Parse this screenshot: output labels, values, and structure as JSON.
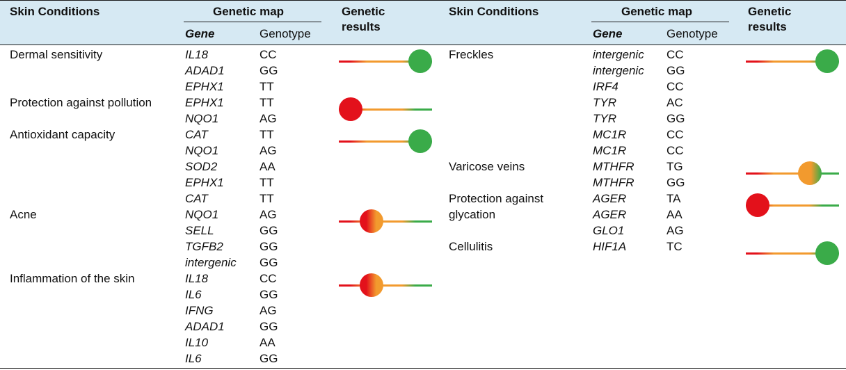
{
  "header": {
    "skin_conditions": "Skin Conditions",
    "genetic_map": "Genetic map",
    "gene": "Gene",
    "genotype": "Genotype",
    "genetic_results_line1": "Genetic",
    "genetic_results_line2": "results"
  },
  "colors": {
    "header_bg": "#d6e9f3",
    "red": "#e3111b",
    "orange": "#f29a2e",
    "green": "#3aab49"
  },
  "left": [
    {
      "condition": [
        "Dermal sensitivity"
      ],
      "result_level": 1.0,
      "genes": [
        [
          "IL18",
          "CC"
        ],
        [
          "ADAD1",
          "GG"
        ],
        [
          "EPHX1",
          "TT"
        ]
      ]
    },
    {
      "condition": [
        "Protection against pollution"
      ],
      "result_level": 0.0,
      "genes": [
        [
          "EPHX1",
          "TT"
        ],
        [
          "NQO1",
          "AG"
        ]
      ]
    },
    {
      "condition": [
        "Antioxidant capacity"
      ],
      "result_level": 1.0,
      "genes": [
        [
          "CAT",
          "TT"
        ],
        [
          "NQO1",
          "AG"
        ],
        [
          "SOD2",
          "AA"
        ],
        [
          "EPHX1",
          "TT"
        ],
        [
          "CAT",
          "TT"
        ]
      ]
    },
    {
      "condition": [
        "Acne"
      ],
      "result_level": 0.3,
      "genes": [
        [
          "NQO1",
          "AG"
        ],
        [
          "SELL",
          "GG"
        ],
        [
          "TGFB2",
          "GG"
        ],
        [
          "intergenic",
          "GG"
        ]
      ]
    },
    {
      "condition": [
        "Inflammation of the skin"
      ],
      "result_level": 0.3,
      "genes": [
        [
          "IL18",
          "CC"
        ],
        [
          "IL6",
          "GG"
        ],
        [
          "IFNG",
          "AG"
        ],
        [
          "ADAD1",
          "GG"
        ],
        [
          "IL10",
          "AA"
        ],
        [
          "IL6",
          "GG"
        ]
      ]
    }
  ],
  "right": [
    {
      "condition": [
        "Freckles"
      ],
      "result_level": 1.0,
      "genes": [
        [
          "intergenic",
          "CC"
        ],
        [
          "intergenic",
          "GG"
        ],
        [
          "IRF4",
          "CC"
        ],
        [
          "TYR",
          "AC"
        ],
        [
          "TYR",
          "GG"
        ],
        [
          "MC1R",
          "CC"
        ],
        [
          "MC1R",
          "CC"
        ]
      ]
    },
    {
      "condition": [
        "Varicose veins"
      ],
      "result_level": 0.75,
      "genes": [
        [
          "MTHFR",
          "TG"
        ],
        [
          "MTHFR",
          "GG"
        ]
      ]
    },
    {
      "condition": [
        "Protection against",
        "glycation"
      ],
      "result_level": 0.0,
      "genes": [
        [
          "AGER",
          "TA"
        ],
        [
          "AGER",
          "AA"
        ],
        [
          "GLO1",
          "AG"
        ]
      ]
    },
    {
      "condition": [
        "Cellulitis"
      ],
      "result_level": 1.0,
      "genes": [
        [
          "HIF1A",
          "TC"
        ]
      ]
    }
  ]
}
